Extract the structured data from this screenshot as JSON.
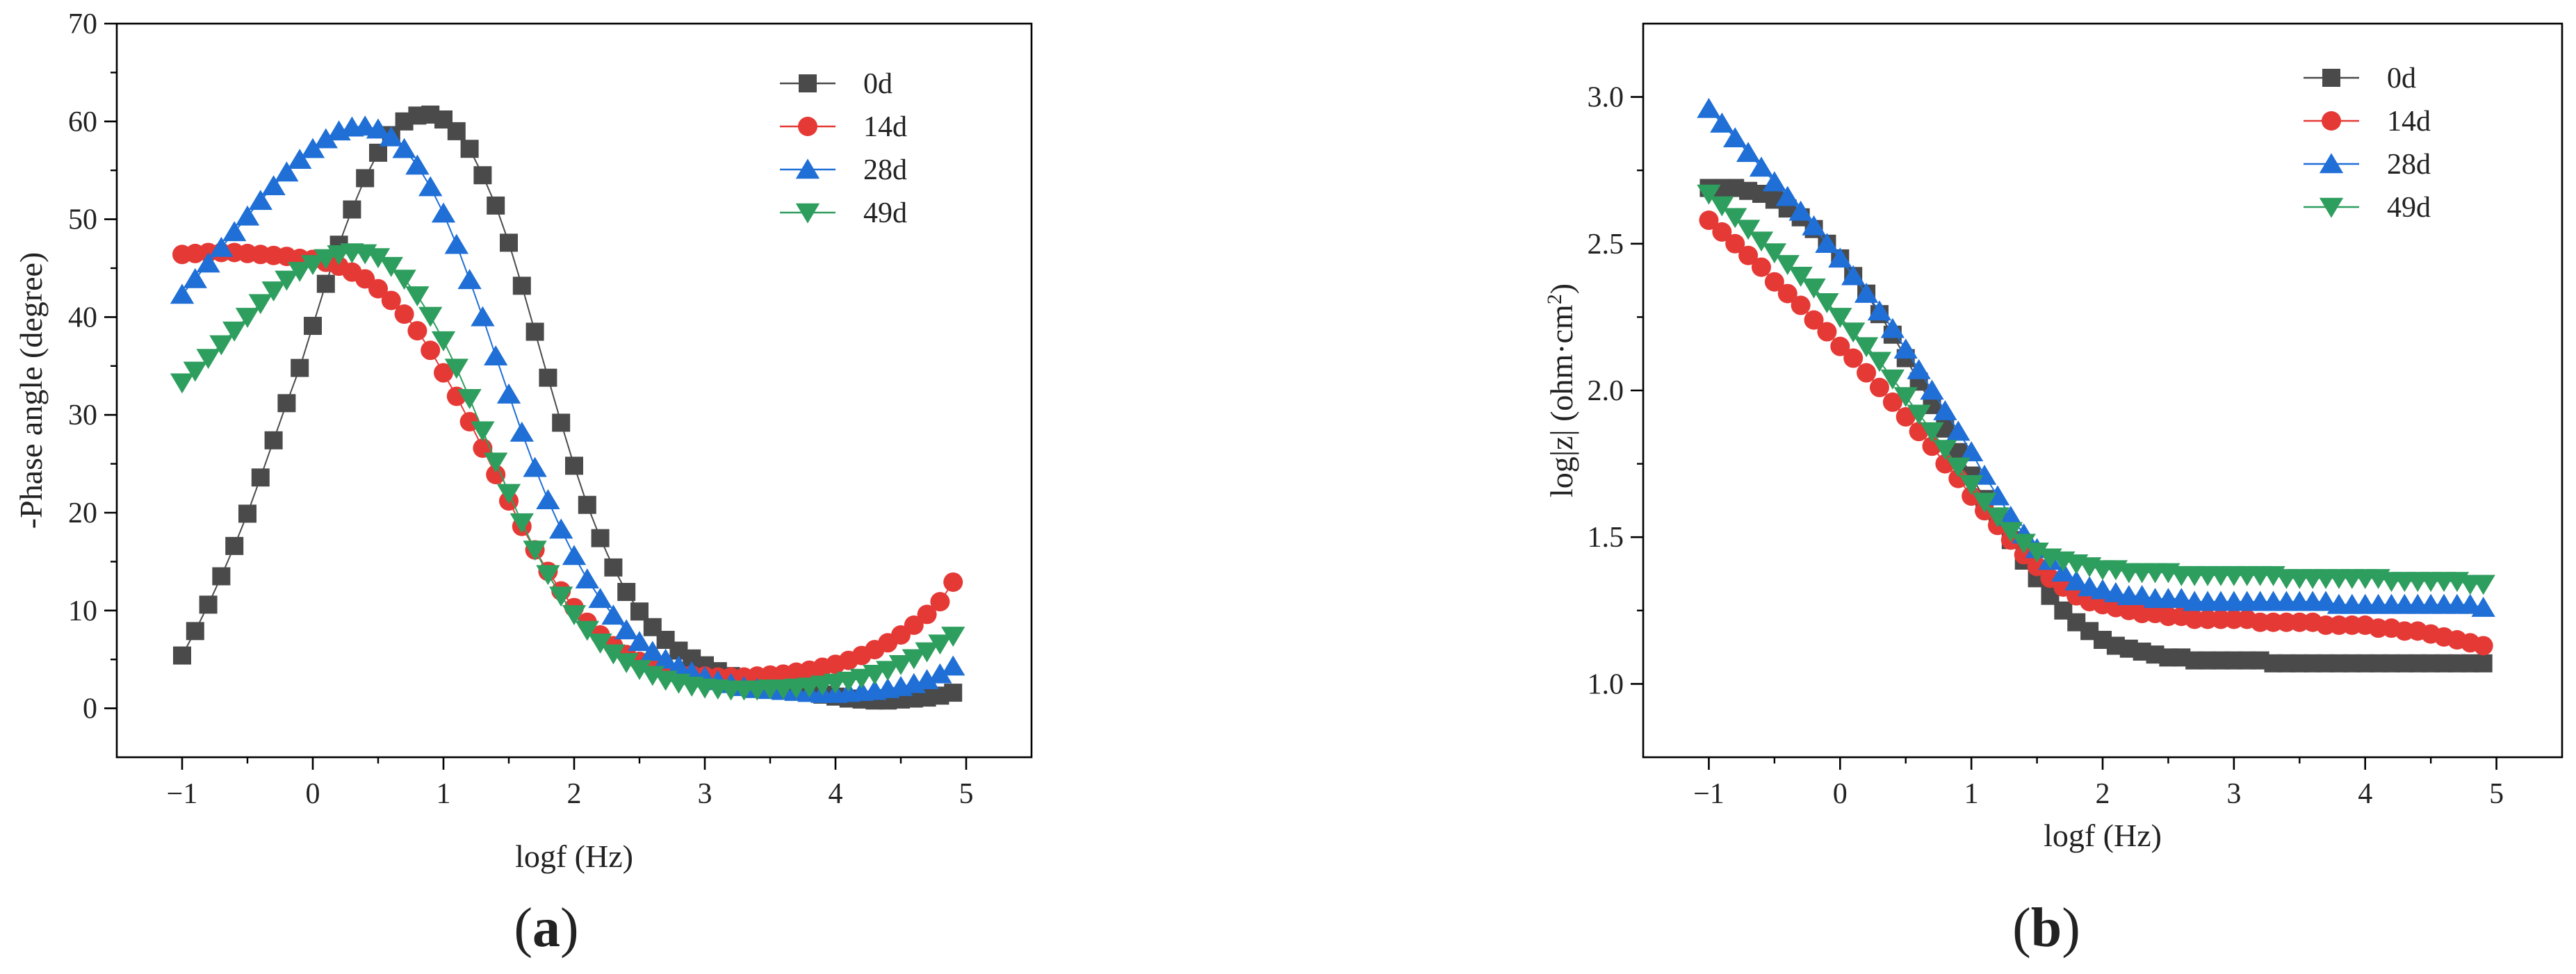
{
  "figure": {
    "panels": [
      {
        "id": "a",
        "label_open": "(",
        "label_letter": "a",
        "label_close": ")"
      },
      {
        "id": "b",
        "label_open": "(",
        "label_letter": "b",
        "label_close": ")"
      }
    ]
  },
  "chart_data": [
    {
      "type": "scatter",
      "panel": "a",
      "title": "",
      "xlabel": "logf (Hz)",
      "ylabel": "-Phase angle (degree)",
      "xlim": [
        -1.5,
        5.5
      ],
      "ylim": [
        -5,
        70
      ],
      "xticks": [
        -1,
        0,
        1,
        2,
        3,
        4,
        5
      ],
      "xtick_labels": [
        "−1",
        "0",
        "1",
        "2",
        "3",
        "4",
        "5"
      ],
      "yticks": [
        0,
        10,
        20,
        30,
        40,
        50,
        60,
        70
      ],
      "ytick_labels": [
        "0",
        "10",
        "20",
        "30",
        "40",
        "50",
        "60",
        "70"
      ],
      "grid": false,
      "legend_position": "top-right",
      "x": [
        -1.0,
        -0.9,
        -0.8,
        -0.7,
        -0.6,
        -0.5,
        -0.4,
        -0.3,
        -0.2,
        -0.1,
        0.0,
        0.1,
        0.2,
        0.3,
        0.4,
        0.5,
        0.6,
        0.7,
        0.8,
        0.9,
        1.0,
        1.1,
        1.2,
        1.3,
        1.4,
        1.5,
        1.6,
        1.7,
        1.8,
        1.9,
        2.0,
        2.1,
        2.2,
        2.3,
        2.4,
        2.5,
        2.6,
        2.7,
        2.8,
        2.9,
        3.0,
        3.1,
        3.2,
        3.3,
        3.4,
        3.5,
        3.6,
        3.7,
        3.8,
        3.9,
        4.0,
        4.1,
        4.2,
        4.3,
        4.4,
        4.5,
        4.6,
        4.7,
        4.8,
        4.9
      ],
      "series": [
        {
          "name": "0d",
          "color": "#4a4a4a",
          "marker": "square",
          "values": [
            5.4,
            7.9,
            10.6,
            13.5,
            16.6,
            19.9,
            23.6,
            27.4,
            31.2,
            34.8,
            39.1,
            43.4,
            47.4,
            51.0,
            54.2,
            56.8,
            58.6,
            60.0,
            60.6,
            60.7,
            60.2,
            59.0,
            57.2,
            54.5,
            51.4,
            47.6,
            43.2,
            38.5,
            33.8,
            29.2,
            24.8,
            20.8,
            17.4,
            14.4,
            11.9,
            9.9,
            8.3,
            7.0,
            5.9,
            5.1,
            4.4,
            3.8,
            3.3,
            2.9,
            2.6,
            2.3,
            2.0,
            1.8,
            1.6,
            1.4,
            1.2,
            1.0,
            0.9,
            0.8,
            0.8,
            0.9,
            1.0,
            1.1,
            1.3,
            1.6
          ]
        },
        {
          "name": "14d",
          "color": "#e53935",
          "marker": "circle",
          "values": [
            46.4,
            46.5,
            46.6,
            46.6,
            46.6,
            46.5,
            46.4,
            46.3,
            46.2,
            46.0,
            45.9,
            45.6,
            45.2,
            44.6,
            43.9,
            42.9,
            41.7,
            40.3,
            38.6,
            36.6,
            34.3,
            31.9,
            29.3,
            26.6,
            23.9,
            21.2,
            18.6,
            16.2,
            14.0,
            12.0,
            10.3,
            8.8,
            7.5,
            6.4,
            5.5,
            4.8,
            4.3,
            3.9,
            3.6,
            3.4,
            3.3,
            3.2,
            3.2,
            3.2,
            3.3,
            3.4,
            3.5,
            3.7,
            3.9,
            4.2,
            4.5,
            4.9,
            5.4,
            6.0,
            6.7,
            7.5,
            8.5,
            9.6,
            10.9,
            12.9
          ]
        },
        {
          "name": "28d",
          "color": "#1f6fd6",
          "marker": "triangle-up",
          "values": [
            42.3,
            43.9,
            45.5,
            47.1,
            48.7,
            50.3,
            51.9,
            53.4,
            54.8,
            56.1,
            57.2,
            58.2,
            59.0,
            59.4,
            59.5,
            59.2,
            58.4,
            57.2,
            55.5,
            53.3,
            50.6,
            47.4,
            43.8,
            40.0,
            36.0,
            32.1,
            28.2,
            24.6,
            21.3,
            18.3,
            15.6,
            13.2,
            11.2,
            9.5,
            8.0,
            6.8,
            5.8,
            5.0,
            4.3,
            3.7,
            3.2,
            2.8,
            2.5,
            2.2,
            2.0,
            1.9,
            1.8,
            1.7,
            1.6,
            1.5,
            1.5,
            1.6,
            1.7,
            1.8,
            2.0,
            2.2,
            2.5,
            2.9,
            3.5,
            4.3
          ]
        },
        {
          "name": "49d",
          "color": "#2e9e5e",
          "marker": "triangle-down",
          "values": [
            33.3,
            34.5,
            35.8,
            37.2,
            38.6,
            40.0,
            41.4,
            42.7,
            43.8,
            44.7,
            45.4,
            46.0,
            46.4,
            46.6,
            46.5,
            46.1,
            45.2,
            43.9,
            42.2,
            40.1,
            37.6,
            34.8,
            31.7,
            28.4,
            25.2,
            22.0,
            19.0,
            16.2,
            13.7,
            11.5,
            9.6,
            8.0,
            6.7,
            5.6,
            4.7,
            4.0,
            3.4,
            2.9,
            2.6,
            2.3,
            2.1,
            2.0,
            1.9,
            1.9,
            1.9,
            2.0,
            2.0,
            2.1,
            2.2,
            2.4,
            2.6,
            2.8,
            3.1,
            3.5,
            3.9,
            4.5,
            5.1,
            5.8,
            6.6,
            7.4
          ]
        }
      ]
    },
    {
      "type": "scatter",
      "panel": "b",
      "title": "",
      "xlabel": "logf  (Hz)",
      "ylabel_main": "log|z| (ohm·cm",
      "ylabel_sup": "2",
      "ylabel_close": ")",
      "xlim": [
        -1.5,
        5.5
      ],
      "ylim": [
        0.75,
        3.25
      ],
      "xticks": [
        -1,
        0,
        1,
        2,
        3,
        4,
        5
      ],
      "xtick_labels": [
        "−1",
        "0",
        "1",
        "2",
        "3",
        "4",
        "5"
      ],
      "yticks": [
        1.0,
        1.5,
        2.0,
        2.5,
        3.0
      ],
      "ytick_labels": [
        "1.0",
        "1.5",
        "2.0",
        "2.5",
        "3.0"
      ],
      "grid": false,
      "legend_position": "top-right",
      "x": [
        -1.0,
        -0.9,
        -0.8,
        -0.7,
        -0.6,
        -0.5,
        -0.4,
        -0.3,
        -0.2,
        -0.1,
        0.0,
        0.1,
        0.2,
        0.3,
        0.4,
        0.5,
        0.6,
        0.7,
        0.8,
        0.9,
        1.0,
        1.1,
        1.2,
        1.3,
        1.4,
        1.5,
        1.6,
        1.7,
        1.8,
        1.9,
        2.0,
        2.1,
        2.2,
        2.3,
        2.4,
        2.5,
        2.6,
        2.7,
        2.8,
        2.9,
        3.0,
        3.1,
        3.2,
        3.3,
        3.4,
        3.5,
        3.6,
        3.7,
        3.8,
        3.9,
        4.0,
        4.1,
        4.2,
        4.3,
        4.4,
        4.5,
        4.6,
        4.7,
        4.8,
        4.9
      ],
      "series": [
        {
          "name": "0d",
          "color": "#4a4a4a",
          "marker": "square",
          "values": [
            2.69,
            2.69,
            2.69,
            2.68,
            2.67,
            2.65,
            2.62,
            2.59,
            2.55,
            2.5,
            2.45,
            2.39,
            2.33,
            2.26,
            2.19,
            2.11,
            2.03,
            1.95,
            1.87,
            1.79,
            1.71,
            1.63,
            1.56,
            1.49,
            1.42,
            1.36,
            1.3,
            1.25,
            1.21,
            1.18,
            1.15,
            1.13,
            1.12,
            1.11,
            1.1,
            1.09,
            1.09,
            1.08,
            1.08,
            1.08,
            1.08,
            1.08,
            1.08,
            1.07,
            1.07,
            1.07,
            1.07,
            1.07,
            1.07,
            1.07,
            1.07,
            1.07,
            1.07,
            1.07,
            1.07,
            1.07,
            1.07,
            1.07,
            1.07,
            1.07
          ]
        },
        {
          "name": "14d",
          "color": "#e53935",
          "marker": "circle",
          "values": [
            2.58,
            2.54,
            2.5,
            2.46,
            2.42,
            2.37,
            2.33,
            2.29,
            2.24,
            2.2,
            2.15,
            2.11,
            2.06,
            2.01,
            1.96,
            1.91,
            1.86,
            1.81,
            1.75,
            1.7,
            1.64,
            1.59,
            1.54,
            1.49,
            1.44,
            1.4,
            1.36,
            1.33,
            1.3,
            1.28,
            1.27,
            1.26,
            1.25,
            1.24,
            1.24,
            1.23,
            1.23,
            1.22,
            1.22,
            1.22,
            1.22,
            1.22,
            1.21,
            1.21,
            1.21,
            1.21,
            1.21,
            1.2,
            1.2,
            1.2,
            1.2,
            1.19,
            1.19,
            1.18,
            1.18,
            1.17,
            1.16,
            1.15,
            1.14,
            1.13
          ]
        },
        {
          "name": "28d",
          "color": "#1f6fd6",
          "marker": "triangle-up",
          "values": [
            2.96,
            2.91,
            2.86,
            2.81,
            2.76,
            2.71,
            2.66,
            2.61,
            2.56,
            2.5,
            2.45,
            2.39,
            2.33,
            2.27,
            2.21,
            2.14,
            2.07,
            2.0,
            1.93,
            1.86,
            1.79,
            1.71,
            1.64,
            1.57,
            1.51,
            1.46,
            1.42,
            1.38,
            1.35,
            1.33,
            1.32,
            1.31,
            1.3,
            1.3,
            1.29,
            1.29,
            1.29,
            1.28,
            1.28,
            1.28,
            1.28,
            1.28,
            1.28,
            1.28,
            1.28,
            1.28,
            1.28,
            1.28,
            1.27,
            1.27,
            1.27,
            1.27,
            1.27,
            1.27,
            1.27,
            1.27,
            1.27,
            1.27,
            1.27,
            1.26
          ]
        },
        {
          "name": "49d",
          "color": "#2e9e5e",
          "marker": "triangle-down",
          "values": [
            2.67,
            2.63,
            2.59,
            2.55,
            2.51,
            2.47,
            2.43,
            2.39,
            2.35,
            2.3,
            2.25,
            2.2,
            2.15,
            2.1,
            2.04,
            1.98,
            1.92,
            1.86,
            1.8,
            1.74,
            1.68,
            1.62,
            1.57,
            1.52,
            1.48,
            1.45,
            1.43,
            1.42,
            1.41,
            1.4,
            1.39,
            1.39,
            1.38,
            1.38,
            1.38,
            1.38,
            1.37,
            1.37,
            1.37,
            1.37,
            1.37,
            1.37,
            1.37,
            1.37,
            1.36,
            1.36,
            1.36,
            1.36,
            1.36,
            1.36,
            1.36,
            1.36,
            1.35,
            1.35,
            1.35,
            1.35,
            1.35,
            1.35,
            1.34,
            1.34
          ]
        }
      ]
    }
  ]
}
